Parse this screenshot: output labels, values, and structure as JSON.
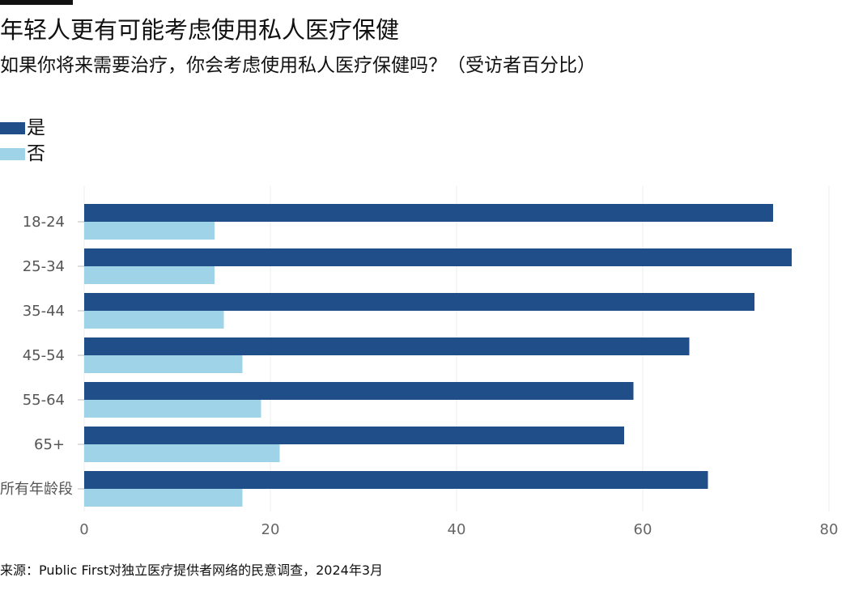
{
  "header": {
    "title": "年轻人更有可能考虑使用私人医疗保健",
    "subtitle": "如果你将来需要治疗，你会考虑使用私人医疗保健吗？（受访者百分比）"
  },
  "legend": {
    "items": [
      {
        "label": "是",
        "color": "#1f4e89"
      },
      {
        "label": "否",
        "color": "#9fd4e8"
      }
    ]
  },
  "chart_data": {
    "type": "bar",
    "orientation": "horizontal",
    "categories": [
      "18-24",
      "25-34",
      "35-44",
      "45-54",
      "55-64",
      "65+",
      "所有年龄段"
    ],
    "series": [
      {
        "name": "是",
        "color": "#1f4e89",
        "values": [
          74,
          76,
          72,
          65,
          59,
          58,
          67
        ]
      },
      {
        "name": "否",
        "color": "#9fd4e8",
        "values": [
          14,
          14,
          15,
          17,
          19,
          21,
          17
        ]
      }
    ],
    "xlim": [
      0,
      80
    ],
    "xticks": [
      0,
      20,
      40,
      60,
      80
    ],
    "xlabel": "",
    "ylabel": "",
    "grid": true,
    "legend_position": "top-left"
  },
  "footer": {
    "source": "来源：Public First对独立医疗提供者网络的民意调查，2024年3月"
  }
}
